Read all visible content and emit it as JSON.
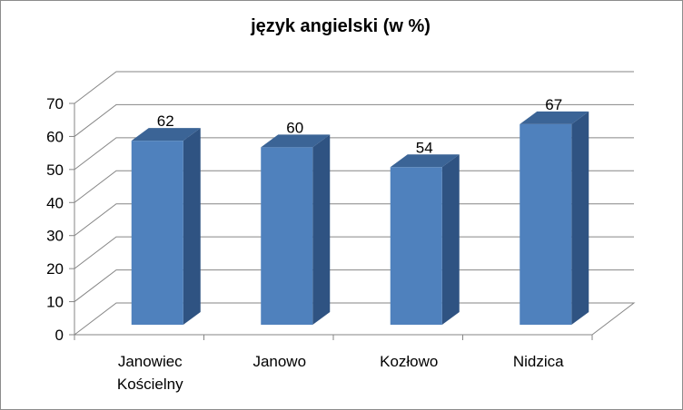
{
  "chart_data": {
    "type": "bar",
    "title": "język angielski (w %)",
    "categories": [
      [
        "Janowiec",
        "Kościelny"
      ],
      [
        "Janowo"
      ],
      [
        "Kozłowo"
      ],
      [
        "Nidzica"
      ]
    ],
    "values": [
      62,
      60,
      54,
      67
    ],
    "ylim": [
      0,
      70
    ],
    "yticks": [
      0,
      10,
      20,
      30,
      40,
      50,
      60,
      70
    ],
    "grid": true,
    "style": "3d-column",
    "colors": {
      "bar_front": "#4f81bd",
      "bar_side": "#2f5382",
      "bar_top": "#3b6496",
      "grid": "#868686",
      "axis": "#868686"
    }
  }
}
